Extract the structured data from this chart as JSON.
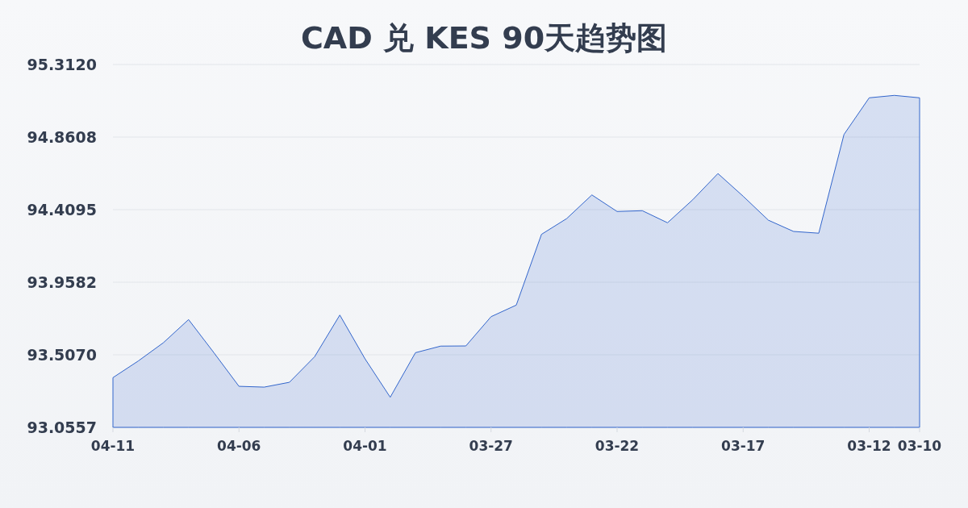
{
  "chart_data": {
    "type": "area",
    "title": "CAD 兑 KES 90天趋势图",
    "categories": [
      "04-11",
      null,
      null,
      null,
      null,
      "04-06",
      null,
      null,
      null,
      null,
      "04-01",
      null,
      null,
      null,
      null,
      "03-27",
      null,
      null,
      null,
      null,
      "03-22",
      null,
      null,
      null,
      null,
      "03-17",
      null,
      null,
      null,
      null,
      "03-12",
      null,
      "03-10"
    ],
    "series": [
      {
        "color": "#3366cc",
        "values": [
          93.365,
          93.468,
          93.582,
          93.726,
          93.521,
          93.311,
          93.306,
          93.336,
          93.495,
          93.754,
          93.482,
          93.243,
          93.52,
          93.561,
          93.562,
          93.744,
          93.816,
          94.256,
          94.354,
          94.501,
          94.398,
          94.403,
          94.328,
          94.471,
          94.634,
          94.493,
          94.344,
          94.274,
          94.263,
          94.877,
          95.105,
          95.12,
          95.105
        ]
      }
    ],
    "ylim": [
      93.0557,
      95.312
    ],
    "yticks": [
      93.0557,
      {
        "value": 93.507,
        "label": "93.5070"
      },
      93.9582,
      94.4095,
      94.8608,
      {
        "value": 95.312,
        "label": "95.3120"
      }
    ],
    "grid": "y"
  }
}
